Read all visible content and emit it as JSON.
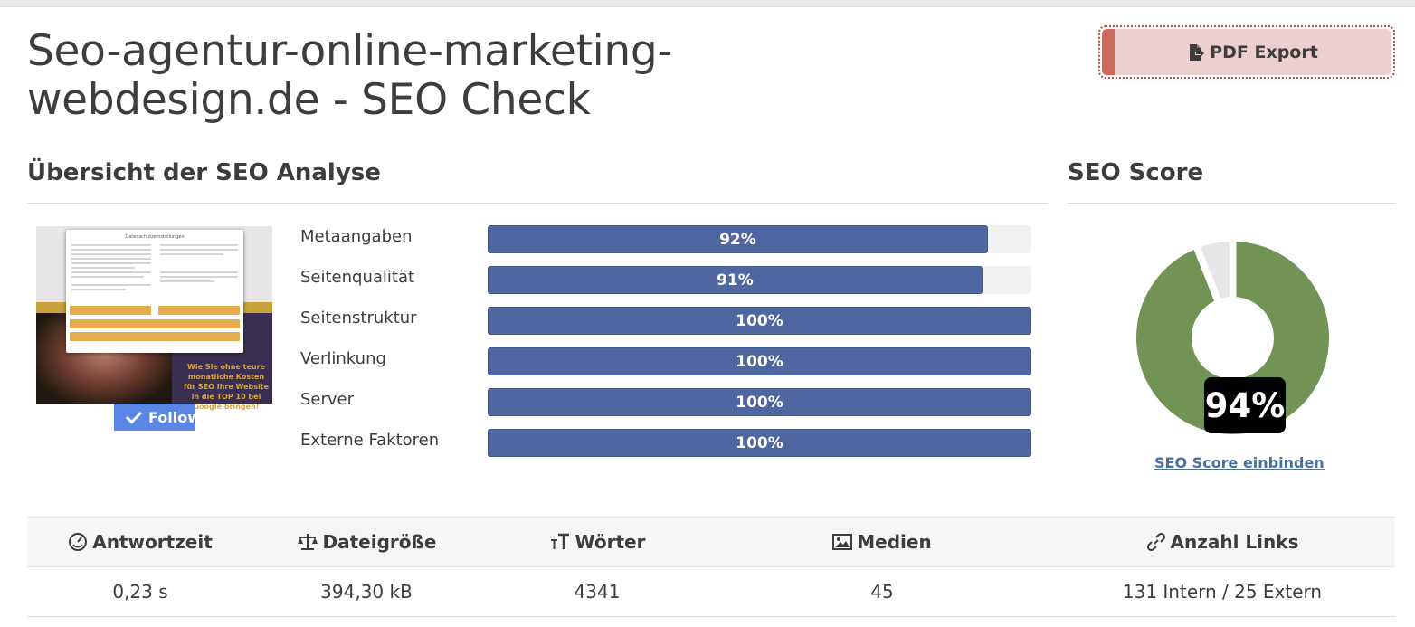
{
  "page": {
    "title": "Seo-agentur-online-marketing-webdesign.de - SEO Check",
    "title_line1": "Seo-agentur-online-marketing-",
    "title_line2": "webdesign.de - SEO Check"
  },
  "export_button": {
    "label": "PDF Export",
    "icon": "file-export-icon"
  },
  "overview": {
    "heading": "Übersicht der SEO Analyse",
    "thumbnail": {
      "alt": "Website screenshot",
      "modal_title": "Datenschutzeinstellungen",
      "promo_text": "Wie Sie ohne teure monatliche Kosten für SEO Ihre Website in die TOP 10 bei Google bringen!"
    },
    "follow_button": {
      "label": "Follow",
      "icon": "check-icon"
    },
    "metrics": [
      {
        "label": "Metaangaben",
        "value": 92,
        "display": "92%"
      },
      {
        "label": "Seitenqualität",
        "value": 91,
        "display": "91%"
      },
      {
        "label": "Seitenstruktur",
        "value": 100,
        "display": "100%"
      },
      {
        "label": "Verlinkung",
        "value": 100,
        "display": "100%"
      },
      {
        "label": "Server",
        "value": 100,
        "display": "100%"
      },
      {
        "label": "Externe Faktoren",
        "value": 100,
        "display": "100%"
      }
    ]
  },
  "score": {
    "heading": "SEO Score",
    "value": 94,
    "display": "94%",
    "link_label": "SEO Score einbinden",
    "colors": {
      "score": "#719355",
      "remainder": "#e6e6e6"
    }
  },
  "stats": {
    "columns": [
      {
        "label": "Antwortzeit",
        "icon": "gauge-icon",
        "value": "0,23 s"
      },
      {
        "label": "Dateigröße",
        "icon": "scale-icon",
        "value": "394,30 kB"
      },
      {
        "label": "Wörter",
        "icon": "text-size-icon",
        "value": "4341"
      },
      {
        "label": "Medien",
        "icon": "image-icon",
        "value": "45"
      },
      {
        "label": "Anzahl Links",
        "icon": "link-icon",
        "value": "131 Intern / 25 Extern"
      }
    ]
  },
  "colors": {
    "bar_fill": "#4f67a0",
    "pdf_button_bg": "#ecd0cf",
    "pdf_button_accent": "#cc6a5e",
    "link": "#4a6f9e"
  }
}
